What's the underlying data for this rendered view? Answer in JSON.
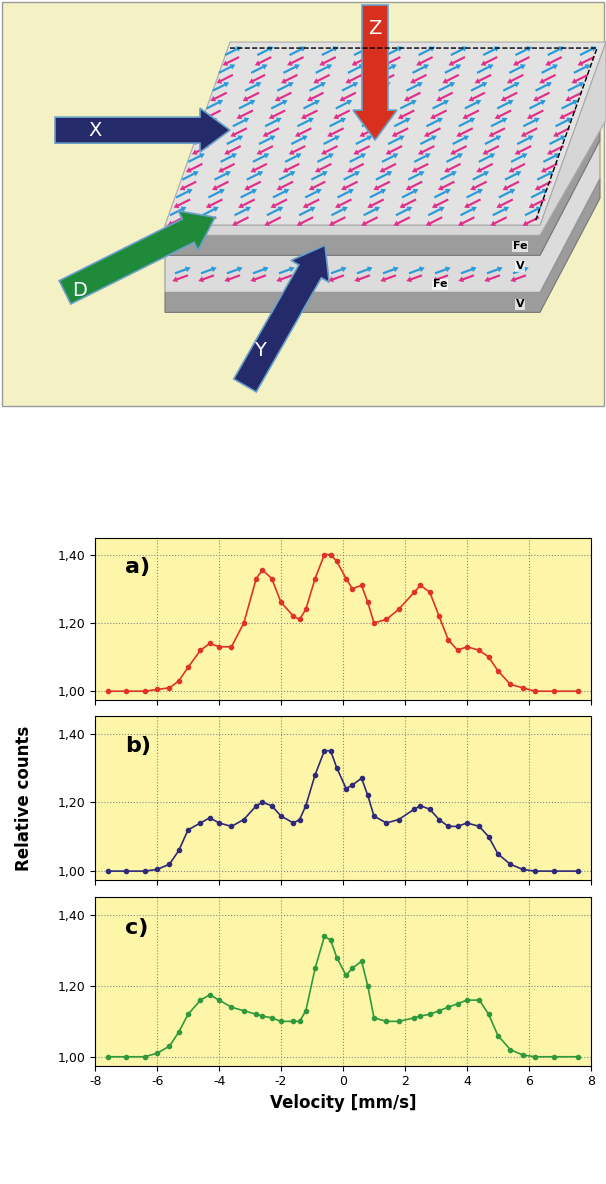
{
  "diagram": {
    "arrows": [
      "X",
      "Z",
      "D",
      "Y"
    ],
    "layers": [
      "Fe",
      "V",
      "Fe",
      "V"
    ]
  },
  "chart_data": [
    {
      "type": "line",
      "annotation": "a)",
      "color": "#e03228",
      "marker": "circle",
      "line_style": "solid",
      "x": [
        -7.6,
        -7.0,
        -6.4,
        -6.0,
        -5.6,
        -5.3,
        -5.0,
        -4.6,
        -4.3,
        -4.0,
        -3.6,
        -3.2,
        -2.8,
        -2.6,
        -2.3,
        -2.0,
        -1.6,
        -1.4,
        -1.2,
        -0.9,
        -0.6,
        -0.4,
        -0.2,
        0.1,
        0.3,
        0.6,
        0.8,
        1.0,
        1.4,
        1.8,
        2.3,
        2.5,
        2.8,
        3.1,
        3.4,
        3.7,
        4.0,
        4.4,
        4.7,
        5.0,
        5.4,
        5.8,
        6.2,
        6.8,
        7.6
      ],
      "values": [
        1.0,
        1.0,
        1.0,
        1.005,
        1.01,
        1.03,
        1.07,
        1.12,
        1.14,
        1.13,
        1.13,
        1.2,
        1.33,
        1.355,
        1.33,
        1.26,
        1.22,
        1.21,
        1.24,
        1.33,
        1.4,
        1.4,
        1.38,
        1.33,
        1.3,
        1.31,
        1.26,
        1.2,
        1.21,
        1.24,
        1.29,
        1.31,
        1.29,
        1.22,
        1.15,
        1.12,
        1.13,
        1.12,
        1.1,
        1.06,
        1.02,
        1.01,
        1.0,
        1.0,
        1.0
      ],
      "xlim": [
        -8,
        8
      ],
      "xticks": [
        -8,
        -6,
        -4,
        -2,
        0,
        2,
        4,
        6,
        8
      ],
      "ylim": [
        0.975,
        1.45
      ],
      "yticks": [
        {
          "value": 1.0,
          "label": "1,00"
        },
        {
          "value": 1.2,
          "label": "1,20"
        },
        {
          "value": 1.4,
          "label": "1,40"
        }
      ],
      "grid": true,
      "tick_labels": "y"
    },
    {
      "type": "line",
      "annotation": "b)",
      "ylabel": "Relative counts",
      "color": "#2e2a78",
      "marker": "circle",
      "line_style": "solid",
      "x": [
        -7.6,
        -7.0,
        -6.4,
        -6.0,
        -5.6,
        -5.3,
        -5.0,
        -4.6,
        -4.3,
        -4.0,
        -3.6,
        -3.2,
        -2.8,
        -2.6,
        -2.3,
        -2.0,
        -1.6,
        -1.4,
        -1.2,
        -0.9,
        -0.6,
        -0.4,
        -0.2,
        0.1,
        0.3,
        0.6,
        0.8,
        1.0,
        1.4,
        1.8,
        2.3,
        2.5,
        2.8,
        3.1,
        3.4,
        3.7,
        4.0,
        4.4,
        4.7,
        5.0,
        5.4,
        5.8,
        6.2,
        6.8,
        7.6
      ],
      "values": [
        1.0,
        1.0,
        1.0,
        1.005,
        1.02,
        1.06,
        1.12,
        1.14,
        1.155,
        1.14,
        1.13,
        1.15,
        1.19,
        1.2,
        1.19,
        1.16,
        1.14,
        1.15,
        1.19,
        1.28,
        1.35,
        1.35,
        1.3,
        1.24,
        1.25,
        1.27,
        1.22,
        1.16,
        1.14,
        1.15,
        1.18,
        1.19,
        1.18,
        1.15,
        1.13,
        1.13,
        1.14,
        1.13,
        1.1,
        1.05,
        1.02,
        1.005,
        1.0,
        1.0,
        1.0
      ],
      "xlim": [
        -8,
        8
      ],
      "xticks": [
        -8,
        -6,
        -4,
        -2,
        0,
        2,
        4,
        6,
        8
      ],
      "ylim": [
        0.975,
        1.45
      ],
      "yticks": [
        {
          "value": 1.0,
          "label": "1,00"
        },
        {
          "value": 1.2,
          "label": "1,20"
        },
        {
          "value": 1.4,
          "label": "1,40"
        }
      ],
      "grid": true,
      "tick_labels": "y"
    },
    {
      "type": "line",
      "annotation": "c)",
      "xlabel": "Velocity [mm/s]",
      "color": "#2f9a3a",
      "marker": "circle",
      "line_style": "solid",
      "x": [
        -7.6,
        -7.0,
        -6.4,
        -6.0,
        -5.6,
        -5.3,
        -5.0,
        -4.6,
        -4.3,
        -4.0,
        -3.6,
        -3.2,
        -2.8,
        -2.6,
        -2.3,
        -2.0,
        -1.6,
        -1.4,
        -1.2,
        -0.9,
        -0.6,
        -0.4,
        -0.2,
        0.1,
        0.3,
        0.6,
        0.8,
        1.0,
        1.4,
        1.8,
        2.3,
        2.5,
        2.8,
        3.1,
        3.4,
        3.7,
        4.0,
        4.4,
        4.7,
        5.0,
        5.4,
        5.8,
        6.2,
        6.8,
        7.6
      ],
      "values": [
        1.0,
        1.0,
        1.0,
        1.01,
        1.03,
        1.07,
        1.12,
        1.16,
        1.175,
        1.16,
        1.14,
        1.13,
        1.12,
        1.115,
        1.11,
        1.1,
        1.1,
        1.1,
        1.13,
        1.25,
        1.34,
        1.33,
        1.28,
        1.23,
        1.25,
        1.27,
        1.2,
        1.11,
        1.1,
        1.1,
        1.11,
        1.115,
        1.12,
        1.13,
        1.14,
        1.15,
        1.16,
        1.16,
        1.12,
        1.06,
        1.02,
        1.005,
        1.0,
        1.0,
        1.0
      ],
      "xlim": [
        -8,
        8
      ],
      "xticks": [
        -8,
        -6,
        -4,
        -2,
        0,
        2,
        4,
        6,
        8
      ],
      "ylim": [
        0.975,
        1.45
      ],
      "yticks": [
        {
          "value": 1.0,
          "label": "1,00"
        },
        {
          "value": 1.2,
          "label": "1,20"
        },
        {
          "value": 1.4,
          "label": "1,40"
        }
      ],
      "grid": true
    }
  ]
}
